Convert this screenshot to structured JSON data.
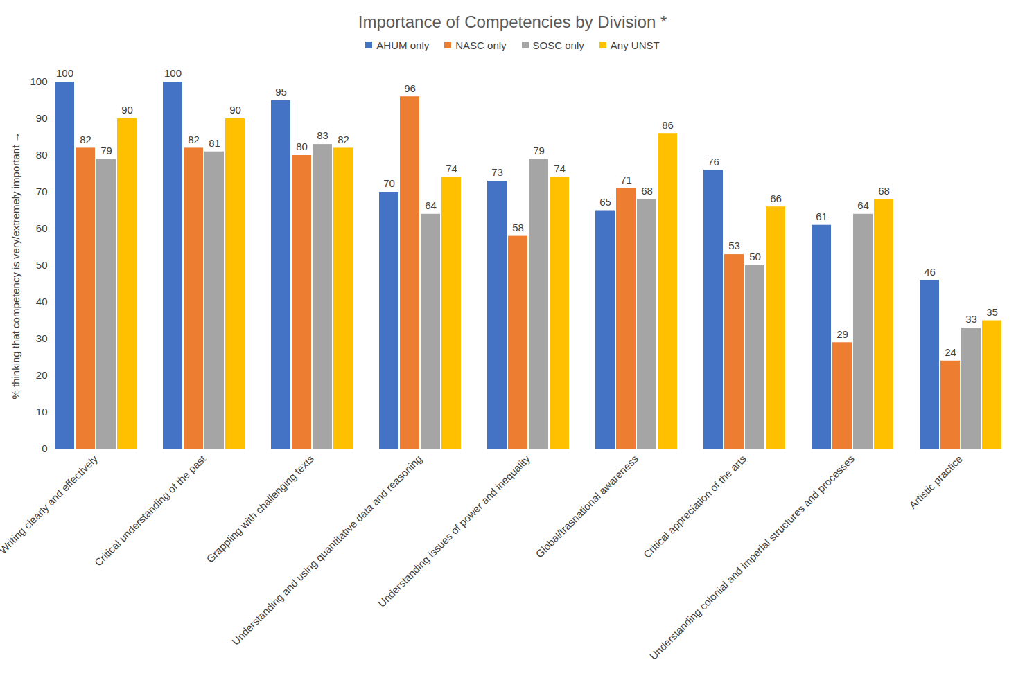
{
  "chart_data": {
    "type": "bar",
    "title": "Importance of Competencies by Division *",
    "y_label": "% thinking that competency is very/extremely important",
    "categories": [
      "Writing clearly and effectively",
      "Critical understanding of the past",
      "Grappling with challenging texts",
      "Understanding and using quantitative data and reasoning",
      "Understanding issues of power and inequality",
      "Global/trasnational awareness",
      "Critical appreciation of the arts",
      "Understanding colonial and imperial structures and processes",
      "Artistic practice"
    ],
    "series": [
      {
        "name": "AHUM only",
        "color": "#4472c4",
        "values": [
          100,
          100,
          95,
          70,
          73,
          65,
          76,
          61,
          46
        ]
      },
      {
        "name": "NASC only",
        "color": "#ed7d31",
        "values": [
          82,
          82,
          80,
          96,
          58,
          71,
          53,
          29,
          24
        ]
      },
      {
        "name": "SOSC only",
        "color": "#a5a5a5",
        "values": [
          79,
          81,
          83,
          64,
          79,
          68,
          50,
          64,
          33
        ]
      },
      {
        "name": "Any UNST",
        "color": "#ffc000",
        "values": [
          90,
          90,
          82,
          74,
          74,
          86,
          66,
          68,
          35
        ]
      }
    ],
    "ylim": [
      0,
      100
    ],
    "yticks": [
      0,
      10,
      20,
      30,
      40,
      50,
      60,
      70,
      80,
      90,
      100
    ],
    "grid": false,
    "legend": "top",
    "data_labels": true
  }
}
